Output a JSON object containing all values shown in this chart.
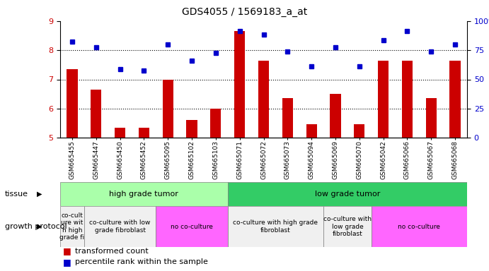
{
  "title": "GDS4055 / 1569183_a_at",
  "samples": [
    "GSM665455",
    "GSM665447",
    "GSM665450",
    "GSM665452",
    "GSM665095",
    "GSM665102",
    "GSM665103",
    "GSM665071",
    "GSM665072",
    "GSM665073",
    "GSM665094",
    "GSM665069",
    "GSM665070",
    "GSM665042",
    "GSM665066",
    "GSM665067",
    "GSM665068"
  ],
  "bar_values": [
    7.35,
    6.65,
    5.35,
    5.35,
    7.0,
    5.6,
    6.0,
    8.65,
    7.65,
    6.35,
    5.45,
    6.5,
    5.45,
    7.65,
    7.65,
    6.35,
    7.65
  ],
  "dot_values": [
    8.3,
    8.1,
    7.35,
    7.3,
    8.2,
    7.65,
    7.9,
    8.65,
    8.55,
    7.95,
    7.45,
    8.1,
    7.45,
    8.35,
    8.65,
    7.95,
    8.2
  ],
  "ymin": 5,
  "ymax": 9,
  "yticks": [
    5,
    6,
    7,
    8,
    9
  ],
  "right_yticklabels": [
    "0",
    "25",
    "50",
    "75",
    "100%"
  ],
  "right_ytick_pct": [
    0,
    25,
    50,
    75,
    100
  ],
  "bar_color": "#cc0000",
  "dot_color": "#0000cc",
  "bar_baseline": 5,
  "tissue_groups": [
    {
      "label": "high grade tumor",
      "color": "#aaffaa",
      "start": 0,
      "end": 7
    },
    {
      "label": "low grade tumor",
      "color": "#33cc66",
      "start": 7,
      "end": 17
    }
  ],
  "growth_groups": [
    {
      "label": "co-cult\nure wit\nh high\ngrade fi",
      "is_pink": false,
      "start": 0,
      "end": 1
    },
    {
      "label": "co-culture with low\ngrade fibroblast",
      "is_pink": false,
      "start": 1,
      "end": 4
    },
    {
      "label": "no co-culture",
      "is_pink": true,
      "start": 4,
      "end": 7
    },
    {
      "label": "co-culture with high grade\nfibroblast",
      "is_pink": false,
      "start": 7,
      "end": 11
    },
    {
      "label": "co-culture with\nlow grade\nfibroblast",
      "is_pink": false,
      "start": 11,
      "end": 13
    },
    {
      "label": "no co-culture",
      "is_pink": true,
      "start": 13,
      "end": 17
    }
  ],
  "legend_bar_label": "transformed count",
  "legend_dot_label": "percentile rank within the sample",
  "tissue_label": "tissue",
  "growth_label": "growth protocol",
  "white_color": "#f0f0f0",
  "pink_color": "#ff66ff"
}
